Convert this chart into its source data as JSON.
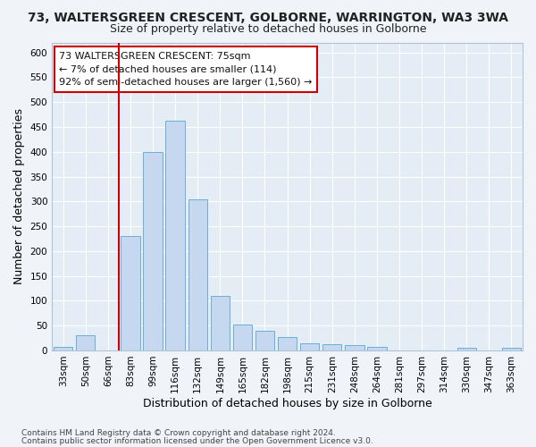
{
  "title": "73, WALTERSGREEN CRESCENT, GOLBORNE, WARRINGTON, WA3 3WA",
  "subtitle": "Size of property relative to detached houses in Golborne",
  "xlabel": "Distribution of detached houses by size in Golborne",
  "ylabel": "Number of detached properties",
  "footnote1": "Contains HM Land Registry data © Crown copyright and database right 2024.",
  "footnote2": "Contains public sector information licensed under the Open Government Licence v3.0.",
  "bar_labels": [
    "33sqm",
    "50sqm",
    "66sqm",
    "83sqm",
    "99sqm",
    "116sqm",
    "132sqm",
    "149sqm",
    "165sqm",
    "182sqm",
    "198sqm",
    "215sqm",
    "231sqm",
    "248sqm",
    "264sqm",
    "281sqm",
    "297sqm",
    "314sqm",
    "330sqm",
    "347sqm",
    "363sqm"
  ],
  "bar_values": [
    7,
    30,
    0,
    230,
    400,
    463,
    305,
    110,
    53,
    39,
    27,
    15,
    13,
    10,
    7,
    0,
    0,
    0,
    5,
    0,
    5
  ],
  "bar_color": "#c5d8ef",
  "bar_edge_color": "#6baed6",
  "ylim": [
    0,
    620
  ],
  "yticks": [
    0,
    50,
    100,
    150,
    200,
    250,
    300,
    350,
    400,
    450,
    500,
    550,
    600
  ],
  "vline_color": "#cc0000",
  "annotation_text_line1": "73 WALTERSGREEN CRESCENT: 75sqm",
  "annotation_text_line2": "← 7% of detached houses are smaller (114)",
  "annotation_text_line3": "92% of semi-detached houses are larger (1,560) →",
  "annotation_box_color": "#cc0000",
  "figure_bg_color": "#f0f4f8",
  "plot_bg_color": "#e4edf5",
  "grid_color": "#ffffff",
  "title_fontsize": 10,
  "subtitle_fontsize": 9,
  "axis_label_fontsize": 9,
  "tick_fontsize": 7.5,
  "annotation_fontsize": 8,
  "footnote_fontsize": 6.5
}
